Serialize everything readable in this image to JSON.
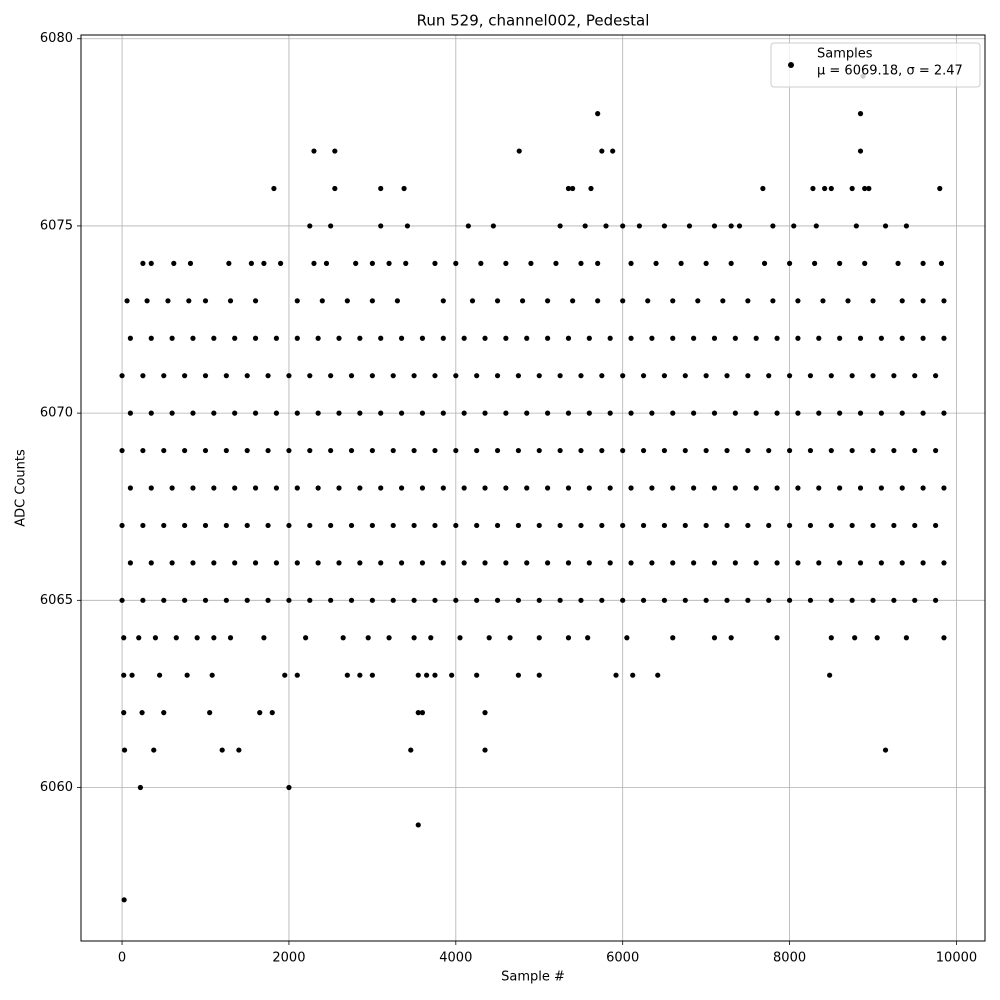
{
  "chart_data": {
    "type": "scatter",
    "title": "Run 529, channel002, Pedestal",
    "x_label": "Sample #",
    "y_label": "ADC Counts",
    "xlim": [
      -492,
      10342
    ],
    "ylim": [
      6055.9,
      6080.1
    ],
    "xticks": [
      0,
      2000,
      4000,
      6000,
      8000,
      10000
    ],
    "yticks": [
      6060,
      6065,
      6070,
      6075,
      6080
    ],
    "grid": true,
    "legend": "upper right",
    "legend_note": "μ = 6069.18, σ = 2.47",
    "series": [
      {
        "name": "Samples",
        "color": "#000000",
        "x": [
          25,
          220,
          2000,
          3550,
          5700,
          8850,
          8880,
          2300,
          2550,
          4760,
          5750,
          5880,
          8850,
          1820,
          2550,
          3100,
          3380,
          5350,
          5400,
          5620,
          7680,
          8280,
          8420,
          8500,
          8750,
          8900,
          8950,
          9800,
          9150,
          3460,
          4350,
          1200,
          1400,
          30,
          380,
          8480,
          6420,
          6120,
          5920,
          20,
          240,
          500,
          1050,
          1650,
          1800,
          3550,
          3600,
          4350,
          20,
          120,
          450,
          780,
          1080,
          1950,
          2100,
          2700,
          2850,
          3000,
          3550,
          3650,
          3750,
          3950,
          4250,
          4750,
          5000,
          20,
          200,
          400,
          650,
          900,
          1100,
          1300,
          1700,
          2200,
          2650,
          2950,
          3200,
          3500,
          3700,
          4050,
          4400,
          4650,
          5000,
          5350,
          5580,
          6050,
          6600,
          7100,
          7300,
          7850,
          8500,
          8780,
          9050,
          9400,
          9850,
          0,
          250,
          500,
          750,
          1000,
          1250,
          1500,
          1750,
          2000,
          2250,
          2500,
          2750,
          3000,
          3250,
          3500,
          3750,
          4000,
          4250,
          4500,
          4750,
          5000,
          5250,
          5500,
          5750,
          6000,
          6250,
          6500,
          6750,
          7000,
          7250,
          7500,
          7750,
          8000,
          8250,
          8500,
          8750,
          9000,
          9250,
          9500,
          9750,
          100,
          350,
          600,
          850,
          1100,
          1350,
          1600,
          1850,
          2100,
          2350,
          2600,
          2850,
          3100,
          3350,
          3600,
          3850,
          4100,
          4350,
          4600,
          4850,
          5100,
          5350,
          5600,
          5850,
          6100,
          6350,
          6600,
          6850,
          7100,
          7350,
          7600,
          7850,
          8100,
          8350,
          8600,
          8850,
          9100,
          9350,
          9600,
          9850,
          0,
          250,
          500,
          750,
          1000,
          1250,
          1500,
          1750,
          2000,
          2250,
          2500,
          2750,
          3000,
          3250,
          3500,
          3750,
          4000,
          4250,
          4500,
          4750,
          5000,
          5250,
          5500,
          5750,
          6000,
          6250,
          6500,
          6750,
          7000,
          7250,
          7500,
          7750,
          8000,
          8250,
          8500,
          8750,
          9000,
          9250,
          9500,
          9750,
          100,
          350,
          600,
          850,
          1100,
          1350,
          1600,
          1850,
          2100,
          2350,
          2600,
          2850,
          3100,
          3350,
          3600,
          3850,
          4100,
          4350,
          4600,
          4850,
          5100,
          5350,
          5600,
          5850,
          6100,
          6350,
          6600,
          6850,
          7100,
          7350,
          7600,
          7850,
          8100,
          8350,
          8600,
          8850,
          9100,
          9350,
          9600,
          9850,
          0,
          250,
          500,
          750,
          1000,
          1250,
          1500,
          1750,
          2000,
          2250,
          2500,
          2750,
          3000,
          3250,
          3500,
          3750,
          4000,
          4250,
          4500,
          4750,
          5000,
          5250,
          5500,
          5750,
          6000,
          6250,
          6500,
          6750,
          7000,
          7250,
          7500,
          7750,
          8000,
          8250,
          8500,
          8750,
          9000,
          9250,
          9500,
          9750,
          100,
          350,
          600,
          850,
          1100,
          1350,
          1600,
          1850,
          2100,
          2350,
          2600,
          2850,
          3100,
          3350,
          3600,
          3850,
          4100,
          4350,
          4600,
          4850,
          5100,
          5350,
          5600,
          5850,
          6100,
          6350,
          6600,
          6850,
          7100,
          7350,
          7600,
          7850,
          8100,
          8350,
          8600,
          8850,
          9100,
          9350,
          9600,
          9850,
          0,
          250,
          500,
          750,
          1000,
          1250,
          1500,
          1750,
          2000,
          2250,
          2500,
          2750,
          3000,
          3250,
          3500,
          3750,
          4000,
          4250,
          4500,
          4750,
          5000,
          5250,
          5500,
          5750,
          6000,
          6250,
          6500,
          6750,
          7000,
          7250,
          7500,
          7750,
          8000,
          8250,
          8500,
          8750,
          9000,
          9250,
          9500,
          9750,
          100,
          350,
          600,
          850,
          1100,
          1350,
          1600,
          1850,
          2100,
          2350,
          2600,
          2850,
          3100,
          3350,
          3600,
          3850,
          4100,
          4350,
          4600,
          4850,
          5100,
          5350,
          5600,
          5850,
          6100,
          6350,
          6600,
          6850,
          7100,
          7350,
          7600,
          7850,
          8100,
          8350,
          8600,
          8850,
          9100,
          9350,
          9600,
          9850,
          60,
          300,
          550,
          800,
          1000,
          1300,
          1600,
          2100,
          2400,
          2700,
          3000,
          3300,
          3850,
          4200,
          4500,
          4800,
          5100,
          5400,
          5700,
          6000,
          6300,
          6600,
          6900,
          7200,
          7500,
          7800,
          8100,
          8400,
          8700,
          9000,
          9350,
          9600,
          9850,
          250,
          350,
          620,
          820,
          1280,
          1550,
          1700,
          1900,
          2300,
          2450,
          2800,
          3000,
          3200,
          3400,
          3750,
          4000,
          4300,
          4600,
          4900,
          5200,
          5500,
          5700,
          6100,
          6400,
          6700,
          7000,
          7300,
          7700,
          8000,
          8300,
          8600,
          8900,
          9300,
          9600,
          9820,
          2250,
          2500,
          3100,
          3420,
          4150,
          4450,
          5250,
          5550,
          5800,
          6000,
          6200,
          6500,
          6800,
          7100,
          7300,
          7400,
          7800,
          8050,
          8320,
          8800,
          9150,
          9400
        ],
        "values": [
          6057,
          6060,
          6060,
          6059,
          6078,
          6078,
          6079,
          6077,
          6077,
          6077,
          6077,
          6077,
          6077,
          6076,
          6076,
          6076,
          6076,
          6076,
          6076,
          6076,
          6076,
          6076,
          6076,
          6076,
          6076,
          6076,
          6076,
          6076,
          6061,
          6061,
          6061,
          6061,
          6061,
          6061,
          6061,
          6063,
          6063,
          6063,
          6063,
          6062,
          6062,
          6062,
          6062,
          6062,
          6062,
          6062,
          6062,
          6062,
          6063,
          6063,
          6063,
          6063,
          6063,
          6063,
          6063,
          6063,
          6063,
          6063,
          6063,
          6063,
          6063,
          6063,
          6063,
          6063,
          6063,
          6064,
          6064,
          6064,
          6064,
          6064,
          6064,
          6064,
          6064,
          6064,
          6064,
          6064,
          6064,
          6064,
          6064,
          6064,
          6064,
          6064,
          6064,
          6064,
          6064,
          6064,
          6064,
          6064,
          6064,
          6064,
          6064,
          6064,
          6064,
          6064,
          6064,
          6065,
          6065,
          6065,
          6065,
          6065,
          6065,
          6065,
          6065,
          6065,
          6065,
          6065,
          6065,
          6065,
          6065,
          6065,
          6065,
          6065,
          6065,
          6065,
          6065,
          6065,
          6065,
          6065,
          6065,
          6065,
          6065,
          6065,
          6065,
          6065,
          6065,
          6065,
          6065,
          6065,
          6065,
          6065,
          6065,
          6065,
          6065,
          6065,
          6065,
          6066,
          6066,
          6066,
          6066,
          6066,
          6066,
          6066,
          6066,
          6066,
          6066,
          6066,
          6066,
          6066,
          6066,
          6066,
          6066,
          6066,
          6066,
          6066,
          6066,
          6066,
          6066,
          6066,
          6066,
          6066,
          6066,
          6066,
          6066,
          6066,
          6066,
          6066,
          6066,
          6066,
          6066,
          6066,
          6066,
          6066,
          6066,
          6066,
          6066,
          6067,
          6067,
          6067,
          6067,
          6067,
          6067,
          6067,
          6067,
          6067,
          6067,
          6067,
          6067,
          6067,
          6067,
          6067,
          6067,
          6067,
          6067,
          6067,
          6067,
          6067,
          6067,
          6067,
          6067,
          6067,
          6067,
          6067,
          6067,
          6067,
          6067,
          6067,
          6067,
          6067,
          6067,
          6067,
          6067,
          6067,
          6067,
          6067,
          6067,
          6068,
          6068,
          6068,
          6068,
          6068,
          6068,
          6068,
          6068,
          6068,
          6068,
          6068,
          6068,
          6068,
          6068,
          6068,
          6068,
          6068,
          6068,
          6068,
          6068,
          6068,
          6068,
          6068,
          6068,
          6068,
          6068,
          6068,
          6068,
          6068,
          6068,
          6068,
          6068,
          6068,
          6068,
          6068,
          6068,
          6068,
          6068,
          6068,
          6068,
          6069,
          6069,
          6069,
          6069,
          6069,
          6069,
          6069,
          6069,
          6069,
          6069,
          6069,
          6069,
          6069,
          6069,
          6069,
          6069,
          6069,
          6069,
          6069,
          6069,
          6069,
          6069,
          6069,
          6069,
          6069,
          6069,
          6069,
          6069,
          6069,
          6069,
          6069,
          6069,
          6069,
          6069,
          6069,
          6069,
          6069,
          6069,
          6069,
          6069,
          6070,
          6070,
          6070,
          6070,
          6070,
          6070,
          6070,
          6070,
          6070,
          6070,
          6070,
          6070,
          6070,
          6070,
          6070,
          6070,
          6070,
          6070,
          6070,
          6070,
          6070,
          6070,
          6070,
          6070,
          6070,
          6070,
          6070,
          6070,
          6070,
          6070,
          6070,
          6070,
          6070,
          6070,
          6070,
          6070,
          6070,
          6070,
          6070,
          6070,
          6071,
          6071,
          6071,
          6071,
          6071,
          6071,
          6071,
          6071,
          6071,
          6071,
          6071,
          6071,
          6071,
          6071,
          6071,
          6071,
          6071,
          6071,
          6071,
          6071,
          6071,
          6071,
          6071,
          6071,
          6071,
          6071,
          6071,
          6071,
          6071,
          6071,
          6071,
          6071,
          6071,
          6071,
          6071,
          6071,
          6071,
          6071,
          6071,
          6071,
          6072,
          6072,
          6072,
          6072,
          6072,
          6072,
          6072,
          6072,
          6072,
          6072,
          6072,
          6072,
          6072,
          6072,
          6072,
          6072,
          6072,
          6072,
          6072,
          6072,
          6072,
          6072,
          6072,
          6072,
          6072,
          6072,
          6072,
          6072,
          6072,
          6072,
          6072,
          6072,
          6072,
          6072,
          6072,
          6072,
          6072,
          6072,
          6072,
          6072,
          6073,
          6073,
          6073,
          6073,
          6073,
          6073,
          6073,
          6073,
          6073,
          6073,
          6073,
          6073,
          6073,
          6073,
          6073,
          6073,
          6073,
          6073,
          6073,
          6073,
          6073,
          6073,
          6073,
          6073,
          6073,
          6073,
          6073,
          6073,
          6073,
          6073,
          6073,
          6073,
          6073,
          6074,
          6074,
          6074,
          6074,
          6074,
          6074,
          6074,
          6074,
          6074,
          6074,
          6074,
          6074,
          6074,
          6074,
          6074,
          6074,
          6074,
          6074,
          6074,
          6074,
          6074,
          6074,
          6074,
          6074,
          6074,
          6074,
          6074,
          6074,
          6074,
          6074,
          6074,
          6074,
          6074,
          6074,
          6074,
          6075,
          6075,
          6075,
          6075,
          6075,
          6075,
          6075,
          6075,
          6075,
          6075,
          6075,
          6075,
          6075,
          6075,
          6075,
          6075,
          6075,
          6075,
          6075,
          6075,
          6075,
          6075
        ]
      }
    ]
  }
}
